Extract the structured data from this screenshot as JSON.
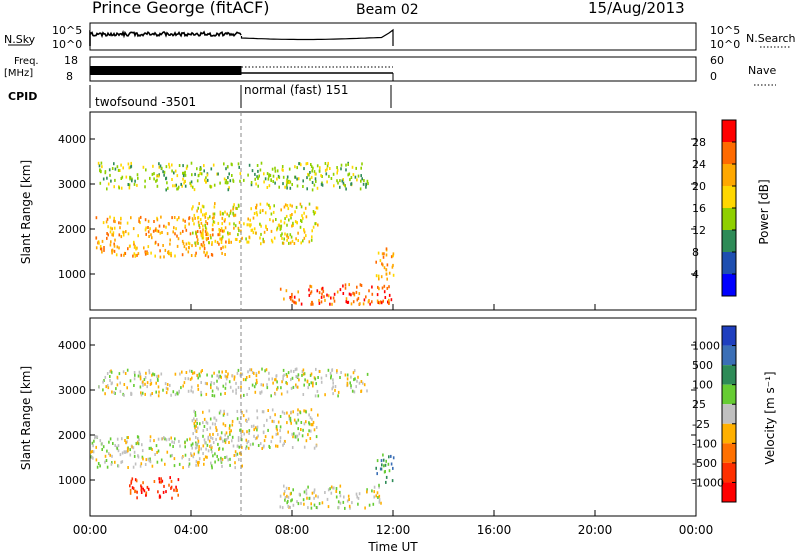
{
  "header": {
    "station": "Prince George (fitACF)",
    "beam": "Beam 02",
    "date": "15/Aug/2013"
  },
  "strips": {
    "nsky_label": "N.Sky",
    "nsky_ticks": [
      "10^5",
      "10^0"
    ],
    "nsearch_label": "N.Search",
    "nsearch_ticks": [
      "10^5",
      "10^0"
    ],
    "freq_label": "Freq.",
    "freq_unit": "[MHz]",
    "freq_ticks": [
      "18",
      "8"
    ],
    "nave_label": "Nave",
    "nave_ticks": [
      "60",
      "0"
    ],
    "cpid_label": "CPID",
    "cpid_segments": [
      "twofsound -3501",
      "normal (fast) 151"
    ]
  },
  "chart_data": [
    {
      "type": "heatmap",
      "ylabel": "Slant Range [km]",
      "xlim": [
        0,
        24
      ],
      "ylim": [
        200,
        4600
      ],
      "yticks": [
        1000,
        2000,
        3000,
        4000
      ],
      "colorbar": {
        "label": "Power [dB]",
        "ticks": [
          "28",
          "24",
          "20",
          "16",
          "12",
          "8",
          "4"
        ],
        "colors": [
          "#ff0000",
          "#ff6a00",
          "#ffa800",
          "#ffd700",
          "#8fd000",
          "#2e8b57",
          "#1e4fb0",
          "#0000ff"
        ]
      },
      "bands": [
        {
          "x": [
            0.3,
            11.0
          ],
          "y": [
            2900,
            3500
          ],
          "level": 4
        },
        {
          "x": [
            0.2,
            5.5
          ],
          "y": [
            1400,
            2300
          ],
          "level": 2
        },
        {
          "x": [
            4.0,
            9.0
          ],
          "y": [
            1700,
            2600
          ],
          "level": 3
        },
        {
          "x": [
            7.5,
            12.0
          ],
          "y": [
            350,
            800
          ],
          "level": 1
        },
        {
          "x": [
            11.2,
            12.0
          ],
          "y": [
            900,
            1600
          ],
          "level": 2
        }
      ]
    },
    {
      "type": "heatmap",
      "ylabel": "Slant Range [km]",
      "xlim": [
        0,
        24
      ],
      "ylim": [
        200,
        4600
      ],
      "yticks": [
        1000,
        2000,
        3000,
        4000
      ],
      "xticks": [
        "00:00",
        "04:00",
        "08:00",
        "12:00",
        "16:00",
        "20:00",
        "00:00"
      ],
      "xlabel": "Time UT",
      "colorbar": {
        "label": "Velocity [m s⁻¹]",
        "ticks": [
          "1000",
          "500",
          "100",
          "25",
          "-25",
          "-100",
          "-500",
          "-1000"
        ],
        "colors": [
          "#1f3fbf",
          "#3b6fb6",
          "#2e8b57",
          "#66cc33",
          "#c0c0c0",
          "#ffb000",
          "#ff7000",
          "#ff3000",
          "#ff0000"
        ]
      },
      "bands": [
        {
          "x": [
            0.3,
            11.0
          ],
          "y": [
            2900,
            3500
          ],
          "level": 4
        },
        {
          "x": [
            0.0,
            6.0
          ],
          "y": [
            1300,
            2000
          ],
          "level": 4
        },
        {
          "x": [
            4.0,
            9.0
          ],
          "y": [
            1700,
            2600
          ],
          "level": 4
        },
        {
          "x": [
            1.5,
            3.5
          ],
          "y": [
            600,
            1100
          ],
          "level": 7
        },
        {
          "x": [
            7.5,
            11.5
          ],
          "y": [
            400,
            900
          ],
          "level": 4
        },
        {
          "x": [
            11.3,
            12.0
          ],
          "y": [
            900,
            1600
          ],
          "level": 2
        }
      ]
    }
  ]
}
